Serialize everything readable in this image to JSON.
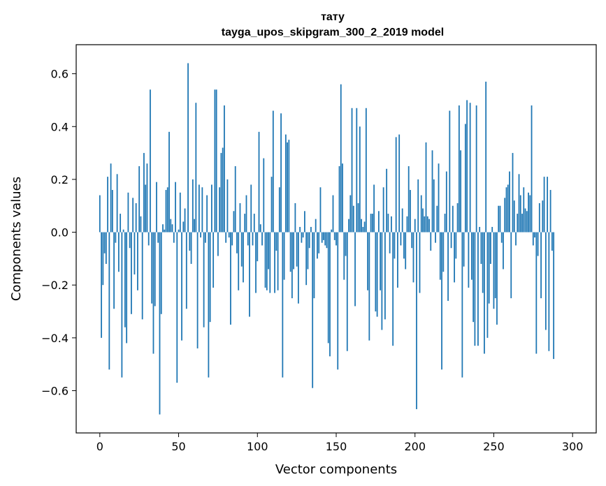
{
  "chart_data": {
    "type": "bar",
    "title_line1": "тату",
    "title_line2": "tayga_upos_skipgram_300_2_2019 model",
    "xlabel": "Vector components",
    "ylabel": "Components values",
    "xlim": [
      -15,
      315
    ],
    "ylim": [
      -0.76,
      0.71
    ],
    "xticks": [
      0,
      50,
      100,
      150,
      200,
      250,
      300
    ],
    "xtick_labels": [
      "0",
      "50",
      "100",
      "150",
      "200",
      "250",
      "300"
    ],
    "yticks": [
      -0.6,
      -0.4,
      -0.2,
      0.0,
      0.2,
      0.4,
      0.6
    ],
    "ytick_labels": [
      "−0.6",
      "−0.4",
      "−0.2",
      "0.0",
      "0.2",
      "0.4",
      "0.6"
    ],
    "bar_color": "#1f77b4",
    "grid": false,
    "values": [
      0.14,
      -0.4,
      -0.2,
      -0.08,
      -0.12,
      0.21,
      -0.52,
      0.26,
      0.16,
      -0.29,
      -0.04,
      0.22,
      -0.15,
      0.07,
      -0.55,
      0.01,
      -0.36,
      -0.42,
      0.15,
      -0.06,
      -0.31,
      0.13,
      -0.16,
      0.11,
      -0.22,
      0.25,
      0.06,
      -0.33,
      0.3,
      0.18,
      0.26,
      -0.05,
      0.54,
      -0.27,
      -0.46,
      -0.28,
      0.19,
      -0.04,
      -0.69,
      -0.31,
      0.03,
      0.01,
      0.16,
      0.17,
      0.38,
      0.05,
      0.03,
      -0.04,
      0.19,
      -0.57,
      0.01,
      0.15,
      -0.41,
      0.04,
      0.09,
      -0.29,
      0.64,
      -0.07,
      -0.12,
      0.2,
      0.05,
      0.49,
      -0.44,
      0.18,
      -0.02,
      0.17,
      -0.36,
      -0.04,
      0.14,
      -0.55,
      -0.34,
      0.18,
      -0.21,
      0.54,
      0.54,
      -0.09,
      0.17,
      0.3,
      0.32,
      0.48,
      -0.04,
      0.2,
      -0.02,
      -0.35,
      -0.05,
      0.08,
      0.25,
      -0.08,
      -0.22,
      0.11,
      -0.13,
      -0.19,
      0.07,
      0.14,
      -0.05,
      -0.32,
      0.18,
      -0.05,
      0.07,
      -0.23,
      -0.11,
      0.38,
      0.03,
      -0.05,
      0.28,
      -0.21,
      -0.22,
      -0.14,
      -0.23,
      0.21,
      0.46,
      -0.23,
      -0.07,
      -0.22,
      0.17,
      0.45,
      -0.55,
      -0.18,
      0.37,
      0.34,
      0.35,
      -0.15,
      -0.25,
      -0.14,
      0.11,
      -0.13,
      -0.27,
      0.02,
      -0.04,
      -0.02,
      0.08,
      -0.2,
      -0.14,
      -0.06,
      0.02,
      -0.59,
      -0.25,
      0.05,
      -0.1,
      -0.08,
      0.17,
      -0.04,
      -0.03,
      -0.05,
      -0.06,
      -0.42,
      -0.47,
      0.01,
      0.14,
      -0.03,
      -0.05,
      -0.52,
      0.25,
      0.56,
      0.26,
      -0.18,
      -0.09,
      -0.45,
      0.05,
      0.14,
      0.47,
      0.1,
      -0.28,
      0.47,
      0.11,
      0.4,
      0.05,
      0.02,
      0.04,
      0.47,
      -0.22,
      -0.41,
      0.07,
      0.07,
      0.18,
      -0.3,
      -0.32,
      0.08,
      -0.22,
      -0.37,
      0.17,
      -0.33,
      0.24,
      0.07,
      -0.08,
      0.06,
      -0.43,
      -0.1,
      0.36,
      -0.21,
      0.37,
      -0.05,
      0.09,
      -0.1,
      -0.14,
      0.06,
      0.25,
      0.16,
      -0.06,
      -0.19,
      0.05,
      -0.67,
      0.2,
      -0.23,
      0.14,
      0.09,
      0.06,
      0.34,
      0.06,
      0.05,
      -0.07,
      0.31,
      0.2,
      -0.04,
      0.1,
      0.26,
      -0.18,
      -0.52,
      -0.15,
      0.07,
      0.23,
      -0.26,
      0.46,
      -0.06,
      0.1,
      -0.19,
      -0.1,
      0.11,
      0.48,
      0.31,
      -0.55,
      -0.13,
      0.41,
      0.5,
      -0.21,
      0.49,
      -0.18,
      -0.34,
      -0.43,
      0.48,
      -0.43,
      0.02,
      -0.12,
      -0.23,
      -0.46,
      0.57,
      -0.4,
      -0.27,
      -0.12,
      0.02,
      -0.29,
      -0.25,
      -0.35,
      0.1,
      0.1,
      -0.04,
      -0.14,
      0.13,
      0.17,
      0.18,
      0.23,
      -0.25,
      0.3,
      0.12,
      -0.05,
      0.07,
      0.22,
      0.14,
      0.07,
      0.17,
      0.09,
      0.08,
      0.15,
      0.14,
      0.48,
      -0.05,
      -0.02,
      -0.46,
      -0.09,
      0.11,
      -0.25,
      0.12,
      0.21,
      -0.37,
      0.21,
      -0.45,
      0.16,
      -0.07,
      -0.48
    ]
  }
}
